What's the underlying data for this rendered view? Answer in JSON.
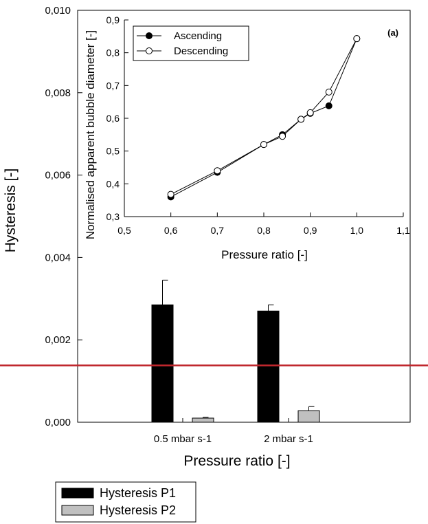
{
  "chart_data": [
    {
      "type": "bar",
      "xlabel": "Pressure ratio [-]",
      "ylabel": "Hysteresis [-]",
      "ylim": [
        0,
        0.01
      ],
      "yticks": [
        "0,000",
        "0,002",
        "0,004",
        "0,006",
        "0,008",
        "0,010"
      ],
      "categories": [
        "0.5 mbar s-1",
        "2 mbar s-1"
      ],
      "series": [
        {
          "name": "Hysteresis P1",
          "values": [
            0.00285,
            0.0027
          ],
          "errors": [
            0.0006,
            0.00015
          ],
          "color": "#000000"
        },
        {
          "name": "Hysteresis P2",
          "values": [
            0.0001,
            0.00028
          ],
          "errors": [
            2e-05,
            0.0001
          ],
          "color": "#c0c0c0"
        }
      ],
      "reference_line": {
        "value": 0.00138,
        "color": "#c0272d"
      },
      "legend_position": "bottom-left"
    },
    {
      "type": "line",
      "panel_label": "(a)",
      "xlabel": "Pressure ratio [-]",
      "ylabel": "Normalised apparent bubble diameter [-]",
      "xlim": [
        0.5,
        1.1
      ],
      "ylim": [
        0.3,
        0.9
      ],
      "xticks": [
        "0,5",
        "0,6",
        "0,7",
        "0,8",
        "0,9",
        "1,0",
        "1,1"
      ],
      "yticks": [
        "0,3",
        "0,4",
        "0,5",
        "0,6",
        "0,7",
        "0,8",
        "0,9"
      ],
      "series": [
        {
          "name": "Ascending",
          "marker": "filled",
          "x": [
            0.6,
            0.7,
            0.8,
            0.84,
            0.88,
            0.9,
            0.94,
            1.0
          ],
          "y": [
            0.36,
            0.435,
            0.52,
            0.55,
            0.597,
            0.615,
            0.638,
            0.843
          ]
        },
        {
          "name": "Descending",
          "marker": "open",
          "x": [
            0.6,
            0.7,
            0.8,
            0.84,
            0.88,
            0.9,
            0.94,
            1.0
          ],
          "y": [
            0.368,
            0.44,
            0.52,
            0.545,
            0.597,
            0.617,
            0.68,
            0.843
          ]
        }
      ],
      "legend_position": "top-left"
    }
  ]
}
